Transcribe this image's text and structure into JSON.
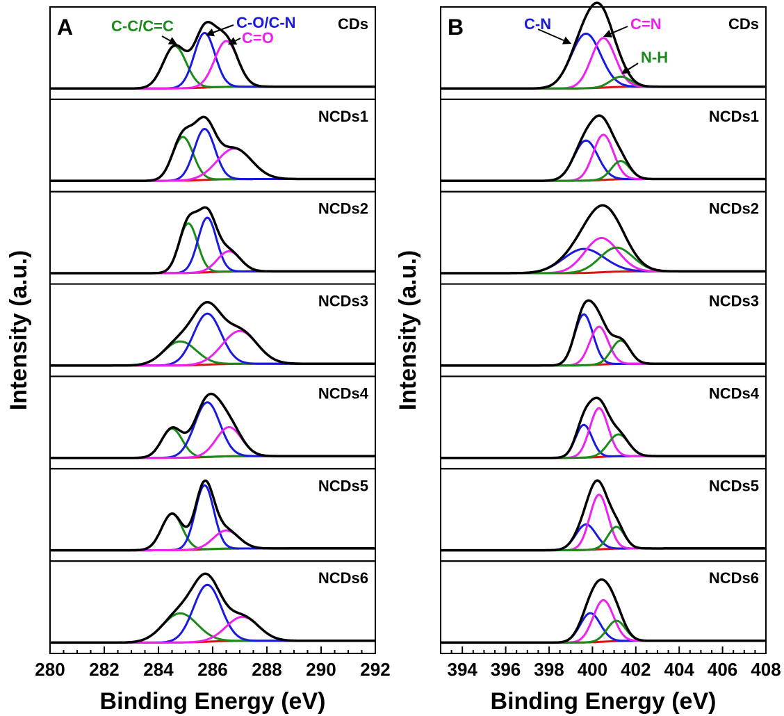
{
  "chart_data": [
    {
      "type": "line",
      "panel_label": "A",
      "xlabel": "Binding Energy (eV)",
      "ylabel": "Intensity (a.u.)",
      "xlim": [
        280,
        292
      ],
      "x_ticks": [
        "280",
        "282",
        "284",
        "286",
        "288",
        "290",
        "292"
      ],
      "component_colors": {
        "total": "#000000",
        "c1": "#1a8a1a",
        "c2": "#1a1adf",
        "c3": "#ee22ee",
        "baseline": "#dd1111"
      },
      "annotations": [
        {
          "text": "C-C/C=C",
          "color": "#1a8a1a"
        },
        {
          "text": "C-O/C-N",
          "color": "#1a1adf"
        },
        {
          "text": "C=O",
          "color": "#ee22ee"
        }
      ],
      "samples": [
        {
          "name": "CDs",
          "peaks": [
            {
              "component": "C-C/C=C",
              "center": 284.6,
              "height": 0.58,
              "fwhm": 1.0
            },
            {
              "component": "C-O/C-N",
              "center": 285.7,
              "height": 0.75,
              "fwhm": 0.9
            },
            {
              "component": "C=O",
              "center": 286.5,
              "height": 0.63,
              "fwhm": 1.0
            }
          ]
        },
        {
          "name": "NCDs1",
          "peaks": [
            {
              "component": "C-C/C=C",
              "center": 284.9,
              "height": 0.6,
              "fwhm": 0.9
            },
            {
              "component": "C-O/C-N",
              "center": 285.7,
              "height": 0.7,
              "fwhm": 0.9
            },
            {
              "component": "C=O",
              "center": 286.8,
              "height": 0.42,
              "fwhm": 1.5
            }
          ]
        },
        {
          "name": "NCDs2",
          "peaks": [
            {
              "component": "C-C/C=C",
              "center": 285.1,
              "height": 0.68,
              "fwhm": 0.8
            },
            {
              "component": "C-O/C-N",
              "center": 285.8,
              "height": 0.75,
              "fwhm": 0.8
            },
            {
              "component": "C=O",
              "center": 286.6,
              "height": 0.28,
              "fwhm": 1.0
            }
          ]
        },
        {
          "name": "NCDs3",
          "peaks": [
            {
              "component": "C-C/C=C",
              "center": 284.8,
              "height": 0.33,
              "fwhm": 1.4
            },
            {
              "component": "C-O/C-N",
              "center": 285.8,
              "height": 0.7,
              "fwhm": 1.2
            },
            {
              "component": "C=O",
              "center": 287.0,
              "height": 0.45,
              "fwhm": 1.5
            }
          ]
        },
        {
          "name": "NCDs4",
          "peaks": [
            {
              "component": "C-C/C=C",
              "center": 284.5,
              "height": 0.4,
              "fwhm": 0.9
            },
            {
              "component": "C-O/C-N",
              "center": 285.8,
              "height": 0.75,
              "fwhm": 1.1
            },
            {
              "component": "C=O",
              "center": 286.6,
              "height": 0.4,
              "fwhm": 1.1
            }
          ]
        },
        {
          "name": "NCDs5",
          "peaks": [
            {
              "component": "C-C/C=C",
              "center": 284.5,
              "height": 0.5,
              "fwhm": 0.9
            },
            {
              "component": "C-O/C-N",
              "center": 285.7,
              "height": 0.88,
              "fwhm": 0.8
            },
            {
              "component": "C=O",
              "center": 286.5,
              "height": 0.25,
              "fwhm": 1.1
            }
          ]
        },
        {
          "name": "NCDs6",
          "peaks": [
            {
              "component": "C-C/C=C",
              "center": 284.8,
              "height": 0.4,
              "fwhm": 1.5
            },
            {
              "component": "C-O/C-N",
              "center": 285.8,
              "height": 0.78,
              "fwhm": 1.2
            },
            {
              "component": "C=O",
              "center": 287.1,
              "height": 0.33,
              "fwhm": 1.4
            }
          ]
        }
      ]
    },
    {
      "type": "line",
      "panel_label": "B",
      "xlabel": "Binding Energy (eV)",
      "ylabel": "Intensity (a.u.)",
      "xlim": [
        393,
        408
      ],
      "x_ticks": [
        "394",
        "396",
        "398",
        "400",
        "402",
        "404",
        "406",
        "408"
      ],
      "component_colors": {
        "total": "#000000",
        "c1": "#1a1adf",
        "c2": "#ee22ee",
        "c3": "#1a8a1a",
        "baseline": "#dd1111"
      },
      "annotations": [
        {
          "text": "C-N",
          "color": "#1a1adf"
        },
        {
          "text": "C=N",
          "color": "#ee22ee"
        },
        {
          "text": "N-H",
          "color": "#1a8a1a"
        }
      ],
      "samples": [
        {
          "name": "CDs",
          "peaks": [
            {
              "component": "C-N",
              "center": 399.7,
              "height": 0.75,
              "fwhm": 1.6
            },
            {
              "component": "C=N",
              "center": 400.5,
              "height": 0.68,
              "fwhm": 1.3
            },
            {
              "component": "N-H",
              "center": 401.3,
              "height": 0.14,
              "fwhm": 1.1
            }
          ]
        },
        {
          "name": "NCDs1",
          "peaks": [
            {
              "component": "C-N",
              "center": 399.7,
              "height": 0.55,
              "fwhm": 1.3
            },
            {
              "component": "C=N",
              "center": 400.5,
              "height": 0.62,
              "fwhm": 1.1
            },
            {
              "component": "N-H",
              "center": 401.3,
              "height": 0.25,
              "fwhm": 1.0
            }
          ]
        },
        {
          "name": "NCDs2",
          "peaks": [
            {
              "component": "C-N",
              "center": 399.6,
              "height": 0.33,
              "fwhm": 2.2
            },
            {
              "component": "C=N",
              "center": 400.4,
              "height": 0.47,
              "fwhm": 1.8
            },
            {
              "component": "N-H",
              "center": 401.1,
              "height": 0.33,
              "fwhm": 1.8
            }
          ]
        },
        {
          "name": "NCDs3",
          "peaks": [
            {
              "component": "C-N",
              "center": 399.6,
              "height": 0.7,
              "fwhm": 1.0
            },
            {
              "component": "C=N",
              "center": 400.3,
              "height": 0.52,
              "fwhm": 1.0
            },
            {
              "component": "N-H",
              "center": 401.3,
              "height": 0.32,
              "fwhm": 1.0
            }
          ]
        },
        {
          "name": "NCDs4",
          "peaks": [
            {
              "component": "C-N",
              "center": 399.6,
              "height": 0.45,
              "fwhm": 0.9
            },
            {
              "component": "C=N",
              "center": 400.3,
              "height": 0.67,
              "fwhm": 1.0
            },
            {
              "component": "N-H",
              "center": 401.2,
              "height": 0.3,
              "fwhm": 1.1
            }
          ]
        },
        {
          "name": "NCDs5",
          "peaks": [
            {
              "component": "C-N",
              "center": 399.7,
              "height": 0.35,
              "fwhm": 1.1
            },
            {
              "component": "C=N",
              "center": 400.3,
              "height": 0.75,
              "fwhm": 1.0
            },
            {
              "component": "N-H",
              "center": 401.1,
              "height": 0.3,
              "fwhm": 0.9
            }
          ]
        },
        {
          "name": "NCDs6",
          "peaks": [
            {
              "component": "C-N",
              "center": 399.9,
              "height": 0.4,
              "fwhm": 1.1
            },
            {
              "component": "C=N",
              "center": 400.5,
              "height": 0.57,
              "fwhm": 1.1
            },
            {
              "component": "N-H",
              "center": 401.1,
              "height": 0.28,
              "fwhm": 1.0
            }
          ]
        }
      ]
    }
  ]
}
